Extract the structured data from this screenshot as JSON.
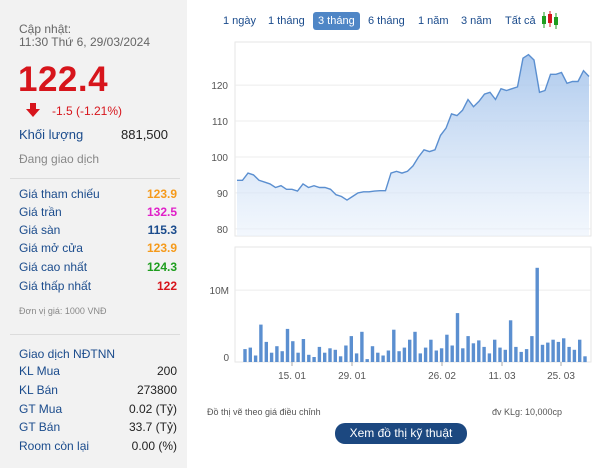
{
  "info": {
    "updated_label": "Cập nhật:",
    "updated_time": "11:30 Thứ 6, 29/03/2024",
    "price": "122.4",
    "change": "-1.5 (-1.21%)",
    "volume_label": "Khối lượng",
    "volume_value": "881,500",
    "status": "Đang giao dịch",
    "unit_note": "Đơn vị giá: 1000 VNĐ",
    "colors": {
      "down": "#d7151c",
      "ceiling": "#e020c8",
      "floor": "#1a4b8c",
      "reference": "#f59a1b",
      "up": "#1f9e1f"
    }
  },
  "prices": [
    {
      "label": "Giá tham chiếu",
      "value": "123.9",
      "color": "#f59a1b"
    },
    {
      "label": "Giá trần",
      "value": "132.5",
      "color": "#e020c8"
    },
    {
      "label": "Giá sàn",
      "value": "115.3",
      "color": "#1a4b8c"
    },
    {
      "label": "Giá mở cửa",
      "value": "123.9",
      "color": "#f59a1b"
    },
    {
      "label": "Giá cao nhất",
      "value": "124.3",
      "color": "#1f9e1f"
    },
    {
      "label": "Giá thấp nhất",
      "value": "122",
      "color": "#d7151c"
    }
  ],
  "foreign": {
    "title": "Giao dịch NĐTNN",
    "rows": [
      {
        "label": "KL Mua",
        "value": "200"
      },
      {
        "label": "KL Bán",
        "value": "273800"
      },
      {
        "label": "GT Mua",
        "value": "0.02 (Tỷ)"
      },
      {
        "label": "GT Bán",
        "value": "33.7 (Tỷ)"
      },
      {
        "label": "Room còn lại",
        "value": "0.00 (%)"
      }
    ]
  },
  "ranges": [
    "1 ngày",
    "1 tháng",
    "3 tháng",
    "6 tháng",
    "1 năm",
    "3 năm",
    "Tất cả"
  ],
  "active_range": "3 tháng",
  "footer": {
    "note": "Đồ thị vẽ theo giá điều chỉnh",
    "unit": "đv KLg: 10,000cp",
    "button": "Xem đồ thị kỹ thuật"
  },
  "chart_data": [
    {
      "type": "area",
      "y_ticks": [
        "120",
        "110",
        "100",
        "90",
        "80"
      ],
      "ylim": [
        78,
        132
      ],
      "grid": true,
      "color": "#5b8fd0",
      "values": [
        93.5,
        93.5,
        95.5,
        95,
        93.5,
        93,
        92.5,
        91.5,
        92,
        91,
        91,
        90.5,
        92.5,
        91.5,
        92,
        91.5,
        91.5,
        91,
        89.5,
        89,
        88,
        89,
        90,
        90.3,
        90.3,
        90.5,
        90.6,
        90.6,
        95.5,
        96,
        95.5,
        96,
        97.5,
        100,
        102,
        101.5,
        102,
        106,
        108,
        112,
        111.5,
        113,
        116,
        114,
        115.5,
        117.5,
        118,
        116,
        119,
        118.5,
        119,
        119.5,
        127.5,
        128.5,
        127,
        118,
        118.5,
        123,
        123,
        123.5,
        120.5,
        121,
        121,
        124,
        122.4
      ]
    },
    {
      "type": "bar",
      "y_ticks": [
        "10M",
        "0"
      ],
      "x_ticks": [
        "15. 01",
        "29. 01",
        "26. 02",
        "11. 03",
        "25. 03"
      ],
      "ylim": [
        0,
        16000000
      ],
      "color": "#5b8fd0",
      "values": [
        1800000,
        2000000,
        900000,
        5200000,
        2800000,
        1300000,
        2200000,
        1500000,
        4600000,
        2900000,
        1300000,
        3200000,
        1000000,
        700000,
        2100000,
        1300000,
        1900000,
        1700000,
        800000,
        2300000,
        3600000,
        1200000,
        4200000,
        400000,
        2200000,
        1300000,
        900000,
        1600000,
        4500000,
        1500000,
        2000000,
        3100000,
        4200000,
        1200000,
        2000000,
        3100000,
        1600000,
        1900000,
        3800000,
        2300000,
        6800000,
        1900000,
        3600000,
        2600000,
        3000000,
        2100000,
        1200000,
        3100000,
        2000000,
        1700000,
        5800000,
        2100000,
        1400000,
        1800000,
        3600000,
        13100000,
        2400000,
        2700000,
        3100000,
        2800000,
        3300000,
        2100000,
        1700000,
        3100000,
        800000
      ]
    }
  ]
}
